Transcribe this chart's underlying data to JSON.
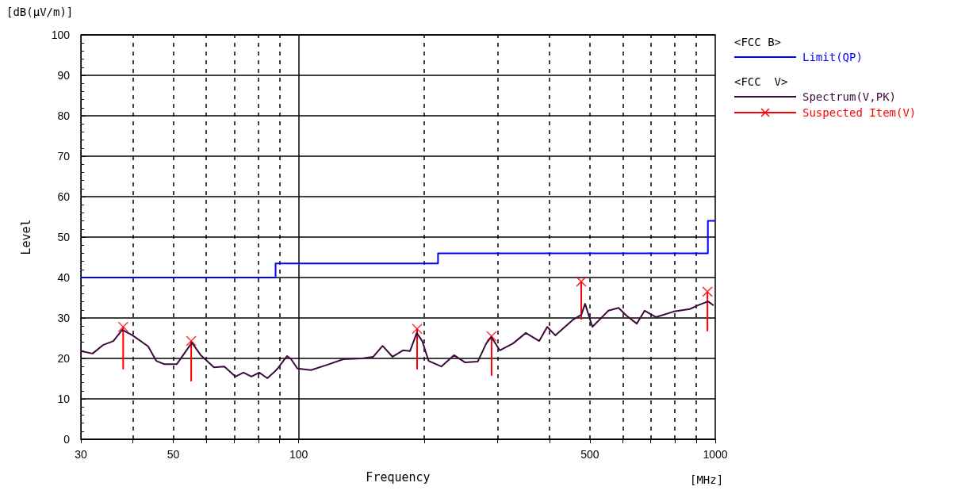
{
  "chart_data": {
    "type": "line",
    "xlabel": "Frequency",
    "ylabel": "Level",
    "log": "x",
    "grid": true,
    "legend": "right",
    "marker": "none",
    "annotations": [
      "[dB(μV/m)]",
      "[MHz]",
      "<FCC B>",
      "<FCC  V>"
    ],
    "xlim": [
      30,
      1000
    ],
    "xticks": [
      30,
      {
        "value": 40,
        "label": null
      },
      50,
      {
        "value": 60,
        "label": null
      },
      {
        "value": 70,
        "label": null
      },
      {
        "value": 80,
        "label": null
      },
      {
        "value": 90,
        "label": null
      },
      100,
      {
        "value": 200,
        "label": null
      },
      {
        "value": 300,
        "label": null
      },
      {
        "value": 400,
        "label": null
      },
      500,
      {
        "value": 600,
        "label": null
      },
      {
        "value": 700,
        "label": null
      },
      {
        "value": 800,
        "label": null
      },
      {
        "value": 900,
        "label": null
      },
      1000
    ],
    "ylim": [
      0,
      100
    ],
    "yticks": [
      0,
      10,
      20,
      30,
      40,
      50,
      60,
      70,
      80,
      90,
      100
    ],
    "series": [
      {
        "name": "Limit(QP)",
        "type": "step",
        "color": "#0000ff",
        "x": [
          30,
          88,
          216,
          960,
          1000
        ],
        "values": [
          40,
          43.5,
          46,
          54,
          54
        ]
      },
      {
        "name": "Spectrum(V,PK)",
        "type": "line",
        "color": "#3c0a3c",
        "x": [
          30,
          32,
          33.9,
          35.9,
          37.7,
          39.9,
          43.5,
          45.5,
          47.5,
          51,
          55.4,
          58.2,
          62.6,
          66.3,
          70.5,
          73.7,
          77,
          80.4,
          84.1,
          87.1,
          89,
          93.8,
          95.9,
          99.3,
          107,
          117,
          128,
          142,
          151,
          159,
          168,
          178,
          185,
          192,
          198,
          205,
          220,
          236,
          251,
          269,
          282,
          290,
          304,
          327,
          351,
          378,
          395,
          413,
          456,
          477,
          487,
          507,
          554,
          586,
          612,
          648,
          677,
          720,
          796,
          869,
          908,
          961,
          991
        ],
        "values": [
          21.8,
          21.2,
          23.3,
          24.3,
          27.1,
          25.7,
          23,
          19.4,
          18.6,
          18.6,
          23.9,
          20.8,
          17.8,
          18,
          15.5,
          16.5,
          15.5,
          16.5,
          15.1,
          16.5,
          17.5,
          20.6,
          19.8,
          17.5,
          17.1,
          18.4,
          19.8,
          20,
          20.4,
          23.1,
          20.4,
          22,
          21.8,
          26.3,
          24.3,
          19.4,
          18,
          20.8,
          19,
          19.2,
          23.7,
          25.3,
          22,
          23.7,
          26.3,
          24.3,
          27.8,
          25.7,
          29.6,
          30.8,
          33.5,
          27.8,
          31.8,
          32.5,
          30.6,
          28.6,
          31.8,
          30.2,
          31.6,
          32.2,
          33.1,
          34.1,
          33.1
        ]
      },
      {
        "name": "Suspected Item(V)",
        "type": "scatter",
        "marker": "cross",
        "color": "#ff0000",
        "x": [
          37.9,
          55.2,
          192.4,
          290.4,
          476.7,
          957.7
        ],
        "values": [
          27.8,
          24.3,
          27.3,
          25.5,
          39,
          36.5
        ],
        "errors": [
          [
            17.3,
            27.8
          ],
          [
            14.3,
            24.3
          ],
          [
            17.3,
            27.3
          ],
          [
            15.7,
            25.5
          ],
          [
            29.6,
            39
          ],
          [
            26.7,
            36.5
          ]
        ]
      }
    ]
  }
}
